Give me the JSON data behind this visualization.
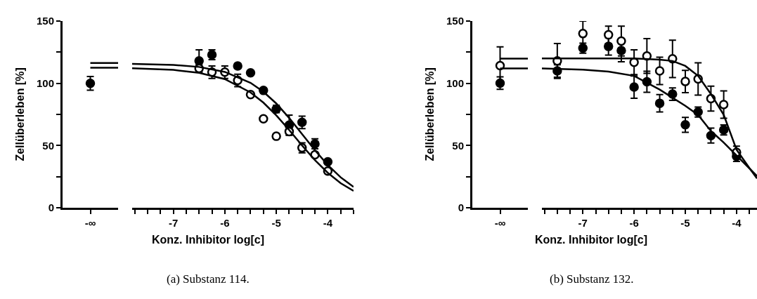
{
  "chart_data": [
    {
      "type": "scatter",
      "ylabel": "Zellüberleben [%]",
      "categories": [
        "-∞"
      ],
      "ylim": [
        0,
        150
      ],
      "yticks": [
        0,
        {
          "value": 25,
          "label": null
        },
        50,
        {
          "value": 75,
          "label": null
        },
        100,
        {
          "value": 125,
          "label": null
        },
        150
      ],
      "marker": "circle",
      "series": [
        {
          "color": "#000000",
          "values": [
            100
          ],
          "errors": [
            5.5
          ]
        },
        {
          "color": "#ffffff",
          "values": [
            null
          ],
          "errors": [
            null
          ]
        }
      ],
      "ref_lines": [
        {
          "axis": "y",
          "value": 116.4,
          "color": "#000000"
        },
        {
          "axis": "y",
          "value": 112.5,
          "color": "#000000"
        }
      ]
    },
    {
      "type": "scatter",
      "xlabel": "Konz. Inhibitor log[c]",
      "xlim": [
        -7.8,
        -3.5
      ],
      "xticks": [
        {
          "value": -7.75,
          "label": null
        },
        {
          "value": -7.5,
          "label": null
        },
        {
          "value": -7.25,
          "label": null
        },
        -7,
        {
          "value": -6.75,
          "label": null
        },
        {
          "value": -6.5,
          "label": null
        },
        {
          "value": -6.25,
          "label": null
        },
        -6,
        {
          "value": -5.75,
          "label": null
        },
        {
          "value": -5.5,
          "label": null
        },
        {
          "value": -5.25,
          "label": null
        },
        -5,
        {
          "value": -4.75,
          "label": null
        },
        {
          "value": -4.5,
          "label": null
        },
        {
          "value": -4.25,
          "label": null
        },
        -4,
        {
          "value": -3.75,
          "label": null
        },
        {
          "value": -3.5,
          "label": null
        }
      ],
      "ylim": [
        0,
        150
      ],
      "tick_labels": "x",
      "marker": "circle",
      "annotations": [
        "(a) Substanz 114."
      ],
      "series": [
        {
          "color": "#000000",
          "x": [
            -6.5,
            -6.25,
            -5.75,
            -5.5,
            -5.25,
            -5,
            -4.75,
            -4.5,
            -4.25,
            -4
          ],
          "values": [
            118,
            123,
            114,
            108.5,
            94.3,
            79.4,
            66.5,
            68.7,
            51.4,
            37
          ],
          "errors": [
            9,
            4,
            2,
            null,
            null,
            3,
            8,
            5,
            4,
            null
          ]
        },
        {
          "color": "#ffffff",
          "x": [
            -6.5,
            -6.25,
            -6,
            -5.75,
            -5.5,
            -5.25,
            -5,
            -4.75,
            -4.5,
            -4.25,
            -4
          ],
          "values": [
            112,
            109,
            109,
            102.4,
            91,
            71.5,
            57.5,
            61.3,
            48.2,
            42.6,
            29.5
          ],
          "errors": [
            3,
            5,
            5,
            5,
            null,
            null,
            null,
            3,
            4,
            2,
            null
          ]
        },
        {
          "type": "line",
          "color": "#000000",
          "marker": "none",
          "x": [
            -7.8,
            -7,
            -6.5,
            -6,
            -5.5,
            -5.25,
            -5,
            -4.75,
            -4.5,
            -4.25,
            -4,
            -3.75,
            -3.5
          ],
          "values": [
            115.7,
            114.8,
            113.2,
            109.2,
            100.4,
            93.2,
            83.8,
            72.2,
            59.3,
            46.3,
            34.4,
            24.5,
            16.8
          ]
        },
        {
          "type": "line",
          "color": "#000000",
          "marker": "none",
          "x": [
            -7.8,
            -7,
            -6.5,
            -6,
            -5.5,
            -5.25,
            -5,
            -4.75,
            -4.5,
            -4.25,
            -4,
            -3.75,
            -3.5
          ],
          "values": [
            112.1,
            110.8,
            108.5,
            103.4,
            92.7,
            84.5,
            74.3,
            62.5,
            50.1,
            38.3,
            28.1,
            19.8,
            13.6
          ]
        }
      ]
    },
    {
      "type": "scatter",
      "ylabel": "Zellüberleben [%]",
      "categories": [
        "-∞"
      ],
      "ylim": [
        0,
        150
      ],
      "yticks": [
        0,
        {
          "value": 25,
          "label": null
        },
        50,
        {
          "value": 75,
          "label": null
        },
        100,
        {
          "value": 125,
          "label": null
        },
        150
      ],
      "marker": "circle",
      "series": [
        {
          "color": "#000000",
          "values": [
            100.2
          ],
          "errors": [
            5
          ]
        },
        {
          "color": "#ffffff",
          "values": [
            114.3
          ],
          "errors": [
            15
          ]
        }
      ],
      "ref_lines": [
        {
          "axis": "y",
          "value": 119.9,
          "color": "#000000"
        },
        {
          "axis": "y",
          "value": 112,
          "color": "#000000"
        }
      ]
    },
    {
      "type": "scatter",
      "xlabel": "Konz. Inhibitor log[c]",
      "xlim": [
        -7.8,
        -3.6
      ],
      "xticks": [
        {
          "value": -7.75,
          "label": null
        },
        {
          "value": -7.5,
          "label": null
        },
        {
          "value": -7.25,
          "label": null
        },
        -7,
        {
          "value": -6.75,
          "label": null
        },
        {
          "value": -6.5,
          "label": null
        },
        {
          "value": -6.25,
          "label": null
        },
        -6,
        {
          "value": -5.75,
          "label": null
        },
        {
          "value": -5.5,
          "label": null
        },
        {
          "value": -5.25,
          "label": null
        },
        -5,
        {
          "value": -4.75,
          "label": null
        },
        {
          "value": -4.5,
          "label": null
        },
        {
          "value": -4.25,
          "label": null
        },
        -4,
        {
          "value": -3.75,
          "label": null
        }
      ],
      "ylim": [
        0,
        150
      ],
      "tick_labels": "x",
      "marker": "circle",
      "annotations": [
        "(b) Substanz 132."
      ],
      "series": [
        {
          "color": "#000000",
          "x": [
            -7.5,
            -7,
            -6.5,
            -6.25,
            -6,
            -5.75,
            -5.5,
            -5.25,
            -5,
            -4.75,
            -4.5,
            -4.25,
            -4
          ],
          "values": [
            110,
            128.3,
            129.7,
            126.4,
            97,
            101.3,
            84,
            91.4,
            66.7,
            77,
            58,
            62.6,
            41.3
          ],
          "errors": [
            5,
            4,
            7,
            9,
            9,
            8.5,
            7,
            5,
            6,
            4,
            6,
            4,
            4
          ]
        },
        {
          "color": "#ffffff",
          "x": [
            -7.5,
            -7,
            -6.5,
            -6.25,
            -6,
            -5.75,
            -5.5,
            -5.25,
            -5,
            -4.75,
            -4.5,
            -4.25,
            -4
          ],
          "values": [
            118,
            140,
            139,
            134,
            117,
            122,
            110,
            119.7,
            101.5,
            103.5,
            87.7,
            83,
            44.6
          ],
          "errors": [
            14,
            10,
            7,
            12,
            10,
            14,
            11,
            15,
            9,
            13,
            10,
            11,
            5
          ]
        },
        {
          "type": "line",
          "color": "#000000",
          "marker": "none",
          "x": [
            -7.8,
            -6,
            -5.5,
            -5.25,
            -5,
            -4.75,
            -4.5,
            -4.25,
            -4,
            -3.75,
            -3.6
          ],
          "values": [
            120,
            120,
            119,
            118,
            114,
            106,
            91.4,
            74.7,
            46.8,
            32,
            23.6
          ]
        },
        {
          "type": "line",
          "color": "#000000",
          "marker": "none",
          "x": [
            -7.8,
            -7,
            -6.5,
            -6,
            -5.5,
            -5,
            -4.75,
            -4.5,
            -4.25,
            -3.6
          ],
          "values": [
            112,
            111,
            109.5,
            106,
            95,
            82,
            74.7,
            61.7,
            52.4,
            25.5
          ]
        }
      ]
    }
  ]
}
